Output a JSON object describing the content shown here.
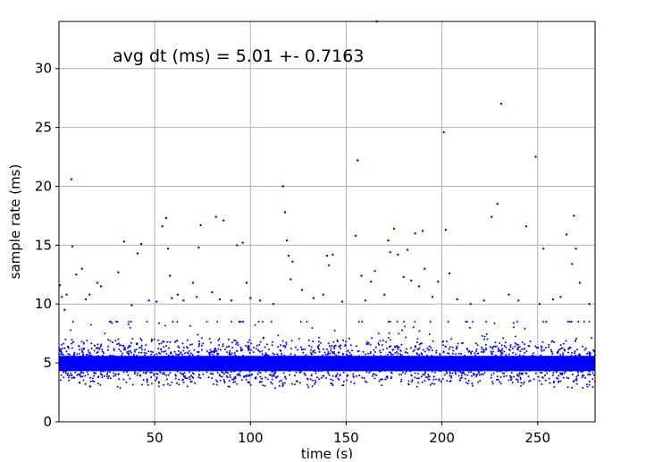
{
  "chart_data": {
    "type": "scatter",
    "title": "",
    "annotation": "avg dt (ms) = 5.01 +- 0.7163",
    "xlabel": "time (s)",
    "ylabel": "sample rate (ms)",
    "xlim": [
      0,
      280
    ],
    "ylim": [
      0,
      34
    ],
    "xticks": [
      50,
      100,
      150,
      200,
      250
    ],
    "yticks": [
      0,
      5,
      10,
      15,
      20,
      25,
      30
    ],
    "grid": true,
    "marker_color": "#0000ff",
    "series": [
      {
        "values_described": "about 56000 samples of inter-sample interval (ms) vs time (s); dense core band at 5 ms, most values 2-8 ms",
        "core": {
          "center": 5.0,
          "band": [
            4.3,
            5.6
          ],
          "spread": [
            2.0,
            8.5
          ]
        },
        "outliers": [
          [
            0.5,
            11.6
          ],
          [
            1.5,
            10.6
          ],
          [
            3,
            9.5
          ],
          [
            4,
            10.8
          ],
          [
            6.5,
            20.6
          ],
          [
            7,
            14.9
          ],
          [
            9,
            12.5
          ],
          [
            12,
            13
          ],
          [
            14,
            10.4
          ],
          [
            16,
            10.8
          ],
          [
            20,
            11.8
          ],
          [
            22,
            11.5
          ],
          [
            31,
            12.7
          ],
          [
            34,
            15.3
          ],
          [
            38,
            9.9
          ],
          [
            41,
            14.3
          ],
          [
            43,
            15.1
          ],
          [
            47,
            10.3
          ],
          [
            51,
            10.2
          ],
          [
            54,
            16.6
          ],
          [
            56,
            17.3
          ],
          [
            57,
            14.7
          ],
          [
            58,
            12.4
          ],
          [
            59,
            10.5
          ],
          [
            62,
            10.8
          ],
          [
            65,
            10.3
          ],
          [
            70,
            11.8
          ],
          [
            72,
            10.6
          ],
          [
            73,
            14.8
          ],
          [
            74,
            16.7
          ],
          [
            80,
            11
          ],
          [
            82,
            17.4
          ],
          [
            84,
            10.4
          ],
          [
            86,
            17.1
          ],
          [
            90,
            10.3
          ],
          [
            93,
            15
          ],
          [
            96,
            15.2
          ],
          [
            98,
            11.8
          ],
          [
            100,
            10.5
          ],
          [
            105,
            10.3
          ],
          [
            112,
            10
          ],
          [
            117,
            20
          ],
          [
            118,
            17.8
          ],
          [
            119,
            15.4
          ],
          [
            120,
            14.1
          ],
          [
            121,
            12.1
          ],
          [
            122,
            13.6
          ],
          [
            127,
            11.2
          ],
          [
            133,
            10.5
          ],
          [
            138,
            10.8
          ],
          [
            140,
            14.1
          ],
          [
            141,
            13.3
          ],
          [
            143,
            14.2
          ],
          [
            148,
            10.2
          ],
          [
            155,
            15.8
          ],
          [
            156,
            22.2
          ],
          [
            158,
            12.4
          ],
          [
            160,
            10.3
          ],
          [
            163,
            11.9
          ],
          [
            165,
            12.8
          ],
          [
            166,
            34
          ],
          [
            170,
            10.8
          ],
          [
            172,
            15.4
          ],
          [
            173,
            14.4
          ],
          [
            175,
            16.4
          ],
          [
            177,
            14.2
          ],
          [
            180,
            12.3
          ],
          [
            182,
            14.6
          ],
          [
            184,
            12
          ],
          [
            186,
            16
          ],
          [
            188,
            11.5
          ],
          [
            190,
            16.2
          ],
          [
            191,
            13
          ],
          [
            195,
            10.6
          ],
          [
            198,
            11.9
          ],
          [
            201,
            24.6
          ],
          [
            202,
            16.3
          ],
          [
            204,
            12.6
          ],
          [
            208,
            10.4
          ],
          [
            215,
            10
          ],
          [
            222,
            10.3
          ],
          [
            226,
            17.4
          ],
          [
            229,
            18.5
          ],
          [
            231,
            27
          ],
          [
            235,
            10.8
          ],
          [
            240,
            10.3
          ],
          [
            244,
            16.6
          ],
          [
            249,
            22.5
          ],
          [
            251,
            10
          ],
          [
            253,
            14.7
          ],
          [
            258,
            10.4
          ],
          [
            262,
            10.6
          ],
          [
            265,
            15.9
          ],
          [
            268,
            13.4
          ],
          [
            269,
            17.5
          ],
          [
            270,
            14.7
          ],
          [
            272,
            11.8
          ],
          [
            277,
            10
          ]
        ]
      }
    ]
  }
}
